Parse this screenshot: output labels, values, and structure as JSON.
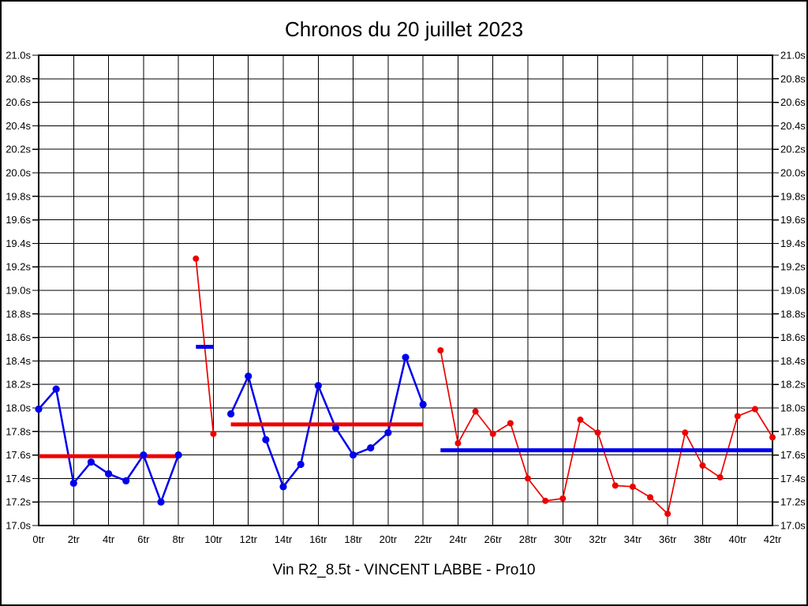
{
  "header": {
    "title": "Chronos du 20 juillet 2023"
  },
  "footer": {
    "caption": "Vin R2_8.5t - VINCENT LABBE - Pro10"
  },
  "colors": {
    "blue": "#0000EE",
    "red": "#EE0000",
    "grid": "#000000",
    "background": "#FFFFFF"
  },
  "chart_data": {
    "type": "line",
    "title": "Chronos du 20 juillet 2023",
    "subtitle": "Vin R2_8.5t - VINCENT LABBE - Pro10",
    "xlabel": "",
    "ylabel": "",
    "x_unit": "tr",
    "y_unit": "s",
    "xlim": [
      0,
      42
    ],
    "ylim": [
      17.0,
      21.0
    ],
    "x_tick_step": 2,
    "y_tick_step": 0.2,
    "grid": true,
    "legend": "none",
    "x_tick_labels": [
      "0tr",
      "2tr",
      "4tr",
      "6tr",
      "8tr",
      "10tr",
      "12tr",
      "14tr",
      "16tr",
      "18tr",
      "20tr",
      "22tr",
      "24tr",
      "26tr",
      "28tr",
      "30tr",
      "32tr",
      "34tr",
      "36tr",
      "38tr",
      "40tr",
      "42tr"
    ],
    "y_tick_labels": [
      "21.0s",
      "20.8s",
      "20.6s",
      "20.4s",
      "20.2s",
      "20.0s",
      "19.8s",
      "19.6s",
      "19.4s",
      "19.2s",
      "19.0s",
      "18.8s",
      "18.6s",
      "18.4s",
      "18.2s",
      "18.0s",
      "17.8s",
      "17.6s",
      "17.4s",
      "17.2s",
      "17.0s"
    ],
    "series": [
      {
        "name": "stint-1-laps",
        "color": "#0000EE",
        "line_width": 2.5,
        "marker_radius": 4.6,
        "x": [
          0,
          1,
          2,
          3,
          4,
          5,
          6,
          7,
          8
        ],
        "y": [
          17.99,
          18.16,
          17.36,
          17.54,
          17.44,
          17.38,
          17.6,
          17.2,
          17.6
        ]
      },
      {
        "name": "stint-2-laps",
        "color": "#EE0000",
        "line_width": 1.7,
        "marker_radius": 4.0,
        "x": [
          9,
          10
        ],
        "y": [
          19.27,
          17.78
        ]
      },
      {
        "name": "stint-3-laps",
        "color": "#0000EE",
        "line_width": 2.5,
        "marker_radius": 4.6,
        "x": [
          11,
          12,
          13,
          14,
          15,
          16,
          17,
          18,
          19,
          20,
          21,
          22
        ],
        "y": [
          17.95,
          18.27,
          17.73,
          17.33,
          17.52,
          18.19,
          17.83,
          17.6,
          17.66,
          17.79,
          18.43,
          18.03
        ]
      },
      {
        "name": "stint-4-laps",
        "color": "#EE0000",
        "line_width": 1.7,
        "marker_radius": 4.0,
        "x": [
          23,
          24,
          25,
          26,
          27,
          28,
          29,
          30,
          31,
          32,
          33,
          34,
          35,
          36,
          37,
          38,
          39,
          40,
          41,
          42
        ],
        "y": [
          18.49,
          17.7,
          17.97,
          17.78,
          17.87,
          17.4,
          17.21,
          17.23,
          17.9,
          17.79,
          17.34,
          17.33,
          17.24,
          17.1,
          17.79,
          17.51,
          17.41,
          17.93,
          17.99,
          17.75
        ]
      }
    ],
    "average_lines": [
      {
        "name": "stint-1-average",
        "color": "#EE0000",
        "x_start": 0,
        "x_end": 8,
        "value": 17.59,
        "width": 5
      },
      {
        "name": "stint-2-average",
        "color": "#0000EE",
        "x_start": 9,
        "x_end": 10,
        "value": 18.52,
        "width": 5
      },
      {
        "name": "stint-3-average",
        "color": "#EE0000",
        "x_start": 11,
        "x_end": 22,
        "value": 17.86,
        "width": 5
      },
      {
        "name": "stint-4-average",
        "color": "#0000EE",
        "x_start": 23,
        "x_end": 42,
        "value": 17.64,
        "width": 5
      }
    ]
  }
}
